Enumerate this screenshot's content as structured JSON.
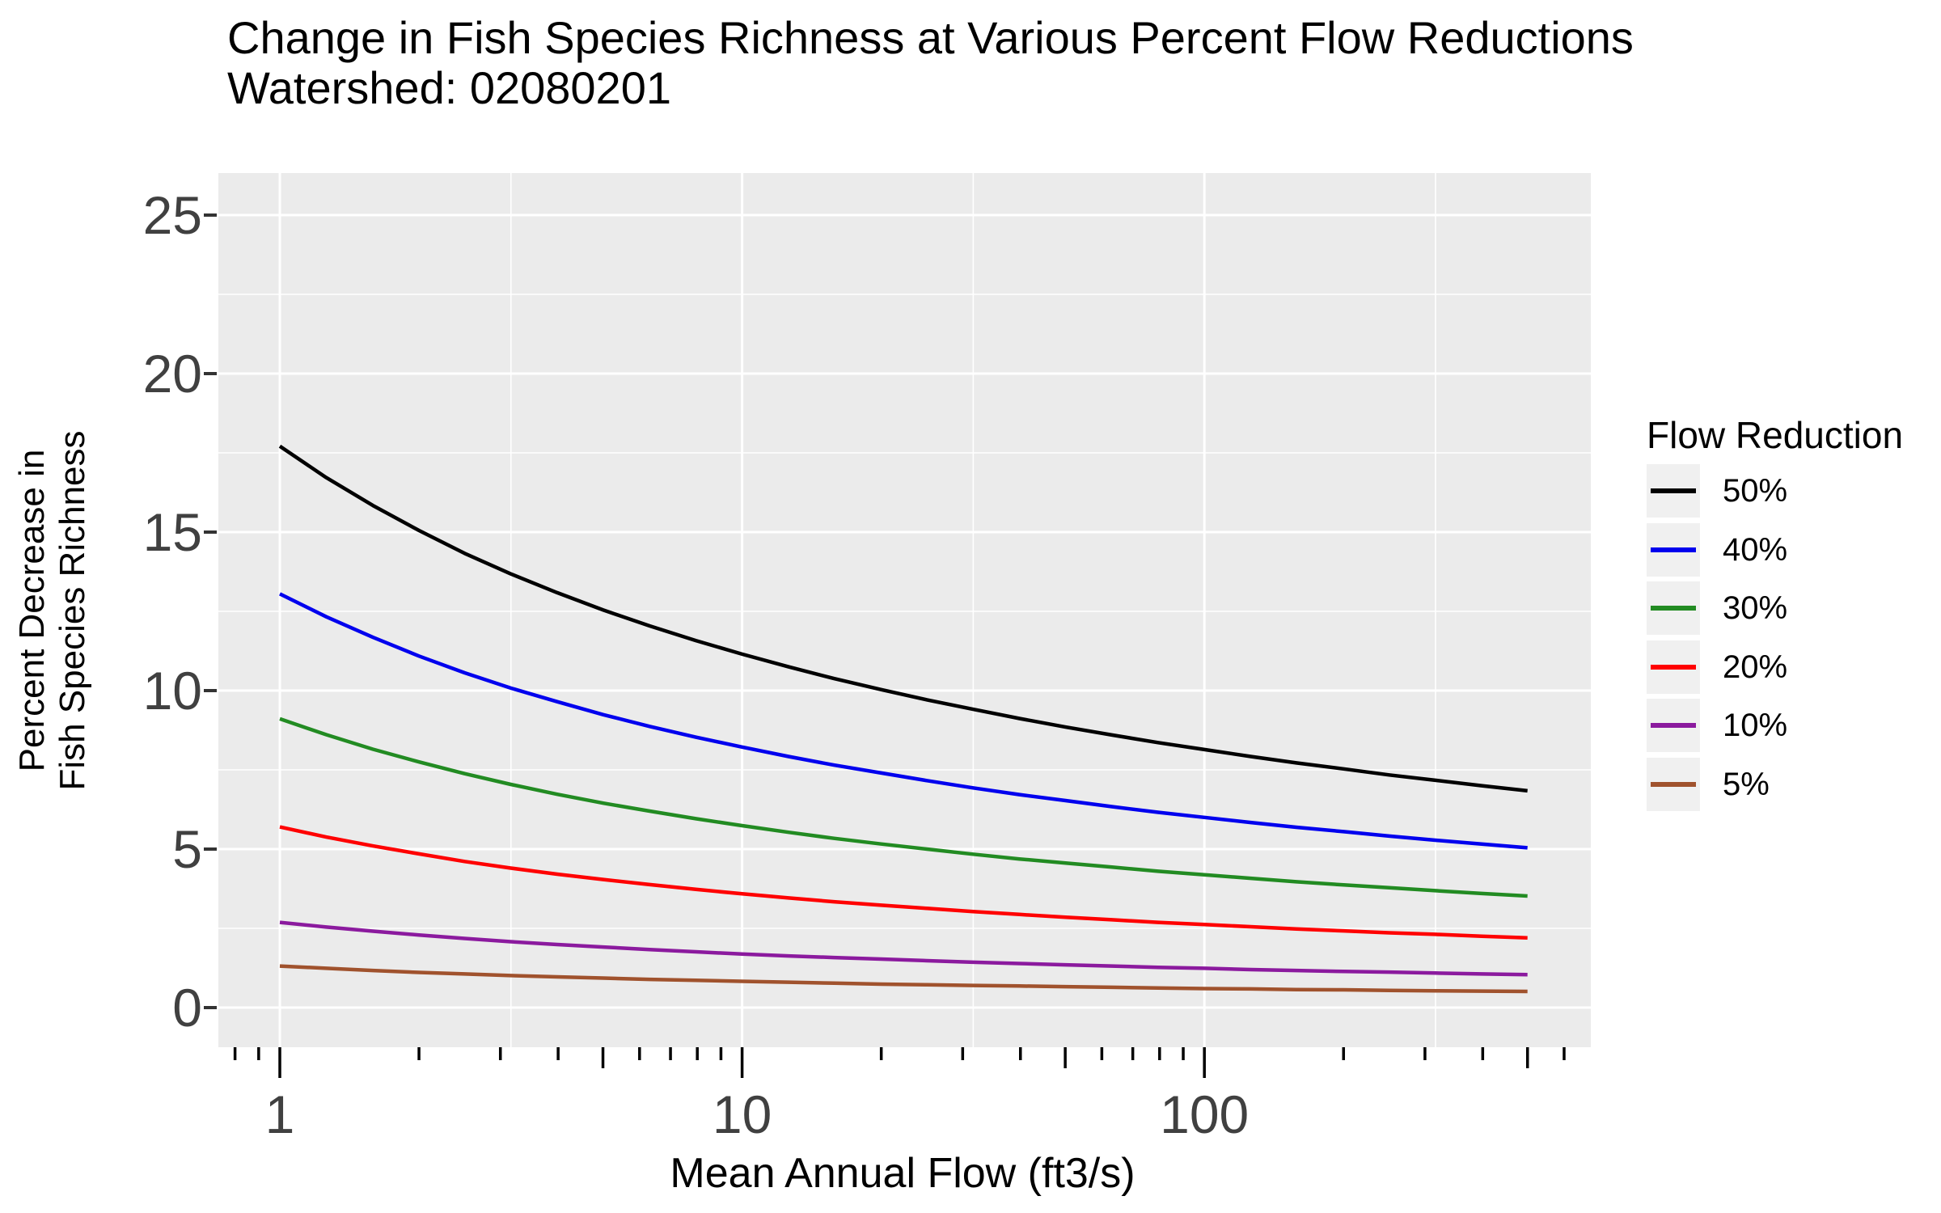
{
  "title": {
    "line1": "Change in Fish Species Richness at Various Percent Flow Reductions",
    "line2": "Watershed: 02080201"
  },
  "y_axis": {
    "title_line1": "Percent Decrease in",
    "title_line2": "Fish Species Richness",
    "tick_labels": [
      "0",
      "5",
      "10",
      "15",
      "20",
      "25"
    ]
  },
  "x_axis": {
    "title": "Mean Annual Flow (ft3/s)",
    "tick_labels": [
      "1",
      "10",
      "100"
    ]
  },
  "legend": {
    "title": "Flow Reduction",
    "items": [
      {
        "label": "50%",
        "color": "#000000"
      },
      {
        "label": "40%",
        "color": "#0000EE"
      },
      {
        "label": "30%",
        "color": "#228B22"
      },
      {
        "label": "20%",
        "color": "#FF0000"
      },
      {
        "label": "10%",
        "color": "#8B1A9E"
      },
      {
        "label": "5%",
        "color": "#A0522D"
      }
    ]
  },
  "colors": {
    "page_bg": "#FFFFFF",
    "panel_bg": "#EBEBEB",
    "grid": "#FFFFFF",
    "legend_key_bg": "#F0F0F0",
    "tick_text": "#404040",
    "tick_mark": "#333333",
    "logtick": "#000000",
    "text": "#000000"
  },
  "chart_data": {
    "type": "line",
    "title": "Change in Fish Species Richness at Various Percent Flow Reductions",
    "subtitle": "Watershed: 02080201",
    "xlabel": "Mean Annual Flow (ft3/s)",
    "ylabel": "Percent Decrease in Fish Species Richness",
    "legend_title": "Flow Reduction",
    "legend_position": "right",
    "x_scale": "log10",
    "xlim": [
      0.73,
      685
    ],
    "ylim": [
      -1.25,
      26.33
    ],
    "x_breaks": [
      1,
      10,
      100
    ],
    "x_minor_breaks": [
      3.162,
      31.62,
      316.2
    ],
    "y_breaks": [
      0,
      5,
      10,
      15,
      20,
      25
    ],
    "y_minor_breaks": [
      2.5,
      7.5,
      12.5,
      17.5,
      22.5
    ],
    "log_ticks": {
      "major": [
        1,
        10,
        100
      ],
      "medium": [
        5,
        50,
        500
      ],
      "small": [
        0.8,
        0.9,
        2,
        3,
        4,
        6,
        7,
        8,
        9,
        20,
        30,
        40,
        60,
        70,
        80,
        90,
        200,
        300,
        400,
        600
      ]
    },
    "x": [
      1,
      1.26,
      1.59,
      2,
      2.51,
      3.16,
      3.98,
      5.01,
      6.31,
      7.94,
      10,
      12.6,
      15.8,
      20,
      25.1,
      31.6,
      39.8,
      50.1,
      63.1,
      79.4,
      100,
      126,
      158,
      200,
      251,
      316,
      398,
      500
    ],
    "series": [
      {
        "name": "50%",
        "color": "#000000",
        "values": [
          17.71,
          16.72,
          15.84,
          15.05,
          14.33,
          13.68,
          13.09,
          12.54,
          12.04,
          11.58,
          11.15,
          10.75,
          10.38,
          10.03,
          9.71,
          9.41,
          9.12,
          8.85,
          8.6,
          8.36,
          8.14,
          7.92,
          7.72,
          7.53,
          7.34,
          7.17,
          7.0,
          6.84
        ]
      },
      {
        "name": "40%",
        "color": "#0000EE",
        "values": [
          13.05,
          12.33,
          11.68,
          11.09,
          10.56,
          10.08,
          9.65,
          9.24,
          8.87,
          8.53,
          8.22,
          7.92,
          7.65,
          7.4,
          7.16,
          6.93,
          6.72,
          6.53,
          6.34,
          6.16,
          6.0,
          5.84,
          5.69,
          5.55,
          5.41,
          5.28,
          5.16,
          5.04
        ]
      },
      {
        "name": "30%",
        "color": "#228B22",
        "values": [
          9.11,
          8.61,
          8.15,
          7.75,
          7.38,
          7.04,
          6.73,
          6.45,
          6.2,
          5.96,
          5.74,
          5.53,
          5.34,
          5.16,
          5.0,
          4.84,
          4.69,
          4.56,
          4.43,
          4.3,
          4.19,
          4.08,
          3.97,
          3.87,
          3.78,
          3.69,
          3.6,
          3.52
        ]
      },
      {
        "name": "20%",
        "color": "#FF0000",
        "values": [
          5.7,
          5.38,
          5.1,
          4.85,
          4.61,
          4.4,
          4.21,
          4.04,
          3.88,
          3.73,
          3.59,
          3.46,
          3.34,
          3.23,
          3.13,
          3.03,
          2.94,
          2.85,
          2.77,
          2.69,
          2.62,
          2.55,
          2.48,
          2.42,
          2.36,
          2.31,
          2.25,
          2.2
        ]
      },
      {
        "name": "10%",
        "color": "#8B1A9E",
        "values": [
          2.69,
          2.54,
          2.41,
          2.29,
          2.18,
          2.08,
          1.99,
          1.91,
          1.83,
          1.76,
          1.69,
          1.63,
          1.58,
          1.53,
          1.48,
          1.43,
          1.39,
          1.35,
          1.31,
          1.27,
          1.24,
          1.2,
          1.17,
          1.14,
          1.12,
          1.09,
          1.06,
          1.04
        ]
      },
      {
        "name": "5%",
        "color": "#A0522D",
        "values": [
          1.31,
          1.24,
          1.17,
          1.11,
          1.06,
          1.01,
          0.97,
          0.93,
          0.89,
          0.86,
          0.83,
          0.8,
          0.77,
          0.74,
          0.72,
          0.7,
          0.68,
          0.66,
          0.64,
          0.62,
          0.6,
          0.59,
          0.57,
          0.56,
          0.54,
          0.53,
          0.52,
          0.51
        ]
      }
    ]
  }
}
